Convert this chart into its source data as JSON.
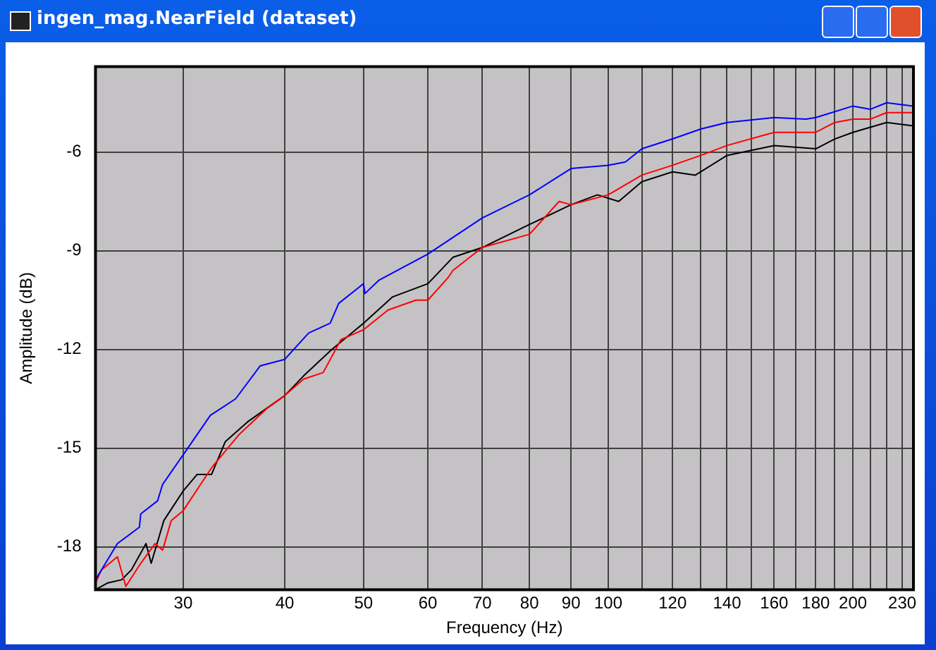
{
  "chart_data": {
    "type": "line",
    "title": "ingen_mag.NearField (dataset)",
    "xlabel": "Frequency (Hz)",
    "ylabel": "Amplitude (dB)",
    "log": "x",
    "grid": true,
    "legend": false,
    "marker": "none",
    "line_style": "solid",
    "xlim": [
      23.4,
      237.4
    ],
    "ylim": [
      -19.3,
      -3.4
    ],
    "xticks": [
      30,
      40,
      50,
      60,
      70,
      80,
      90,
      100,
      {
        "value": 110,
        "label": null
      },
      120,
      {
        "value": 130,
        "label": null
      },
      140,
      {
        "value": 150,
        "label": null
      },
      160,
      {
        "value": 170,
        "label": null
      },
      180,
      {
        "value": 190,
        "label": null
      },
      200,
      {
        "value": 210,
        "label": null
      },
      {
        "value": 220,
        "label": null
      },
      230
    ],
    "yticks": [
      -6,
      -9,
      -12,
      -15,
      -18
    ],
    "series": [
      {
        "color": "#0000ff",
        "x": [
          23.4,
          24.9,
          26.5,
          26.6,
          27.9,
          28.3,
          30.0,
          32.4,
          34.8,
          37.3,
          40.0,
          42.8,
          45.5,
          46.6,
          50.0,
          50.2,
          52.2,
          60.0,
          70.0,
          80.0,
          90.0,
          100.0,
          105.0,
          110.0,
          120.0,
          130.0,
          140.0,
          160.0,
          175.0,
          180.0,
          200.0,
          210.0,
          220.0,
          237.0
        ],
        "values": [
          -19.0,
          -17.9,
          -17.4,
          -17.0,
          -16.6,
          -16.1,
          -15.2,
          -14.0,
          -13.5,
          -12.5,
          -12.3,
          -11.5,
          -11.2,
          -10.6,
          -10.0,
          -10.3,
          -9.9,
          -9.1,
          -8.0,
          -7.3,
          -6.5,
          -6.4,
          -6.3,
          -5.9,
          -5.6,
          -5.3,
          -5.1,
          -4.95,
          -5.0,
          -4.95,
          -4.6,
          -4.7,
          -4.5,
          -4.6
        ]
      },
      {
        "color": "#ff0000",
        "x": [
          23.4,
          23.8,
          24.9,
          25.5,
          26.6,
          27.7,
          28.3,
          29.0,
          30.0,
          32.5,
          35.1,
          38.0,
          40.0,
          42.2,
          44.6,
          46.9,
          50.0,
          53.6,
          58.0,
          60.0,
          63.6,
          64.4,
          70.0,
          80.0,
          87.0,
          90.0,
          100.0,
          110.0,
          120.0,
          130.0,
          140.0,
          160.0,
          180.0,
          190.0,
          200.0,
          210.0,
          220.0,
          237.0
        ],
        "values": [
          -19.1,
          -18.7,
          -18.3,
          -19.2,
          -18.5,
          -17.9,
          -18.1,
          -17.2,
          -16.9,
          -15.6,
          -14.6,
          -13.8,
          -13.4,
          -12.9,
          -12.7,
          -11.7,
          -11.4,
          -10.8,
          -10.5,
          -10.5,
          -9.8,
          -9.6,
          -8.9,
          -8.5,
          -7.5,
          -7.6,
          -7.3,
          -6.7,
          -6.4,
          -6.1,
          -5.8,
          -5.4,
          -5.4,
          -5.1,
          -5.0,
          -5.0,
          -4.8,
          -4.8
        ]
      },
      {
        "color": "#000000",
        "x": [
          23.4,
          24.2,
          25.2,
          25.9,
          27.0,
          27.4,
          28.4,
          30.0,
          31.2,
          32.5,
          33.8,
          36.0,
          40.0,
          42.2,
          45.7,
          50.0,
          54.3,
          60.0,
          64.4,
          70.0,
          80.0,
          90.0,
          97.0,
          103.0,
          110.0,
          120.0,
          128.0,
          140.0,
          160.0,
          180.0,
          190.0,
          200.0,
          220.0,
          237.0
        ],
        "values": [
          -19.3,
          -19.1,
          -19.0,
          -18.7,
          -17.9,
          -18.5,
          -17.2,
          -16.3,
          -15.8,
          -15.8,
          -14.8,
          -14.2,
          -13.4,
          -12.8,
          -12.0,
          -11.2,
          -10.4,
          -10.0,
          -9.2,
          -8.9,
          -8.2,
          -7.6,
          -7.3,
          -7.5,
          -6.9,
          -6.6,
          -6.7,
          -6.1,
          -5.8,
          -5.9,
          -5.6,
          -5.4,
          -5.1,
          -5.2
        ]
      }
    ]
  }
}
